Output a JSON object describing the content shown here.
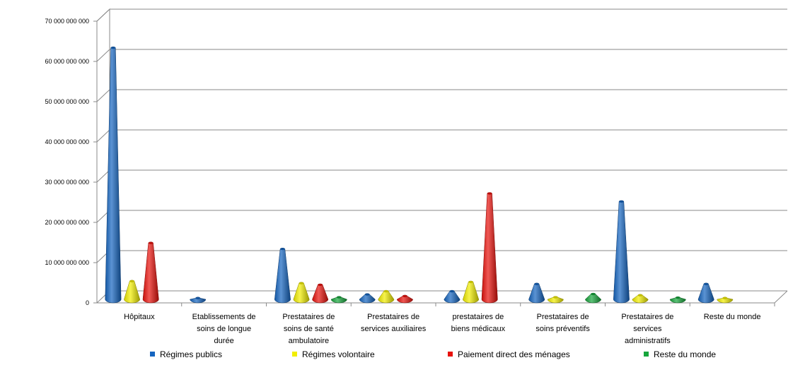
{
  "chart_data": {
    "type": "bar",
    "style": "3d-cone",
    "categories": [
      [
        "Hôpitaux"
      ],
      [
        "Etablissements de",
        "soins de longue",
        "durée"
      ],
      [
        "Prestataires de",
        "soins de santé",
        "ambulatoire"
      ],
      [
        "Prestataires de",
        "services auxiliaires"
      ],
      [
        "prestataires de",
        "biens médicaux"
      ],
      [
        "Prestataires de",
        "soins préventifs"
      ],
      [
        "Prestataires de",
        "services",
        "administratifs"
      ],
      [
        "Reste du monde"
      ]
    ],
    "series": [
      {
        "name": "Régimes publics",
        "color": "#1565c0",
        "values": [
          62500000000,
          300000000,
          12500000000,
          1200000000,
          2000000000,
          3800000000,
          24300000000,
          3800000000
        ]
      },
      {
        "name": "Régimes volontaire",
        "color": "#f2ee00",
        "values": [
          4500000000,
          null,
          4000000000,
          2000000000,
          4300000000,
          500000000,
          1000000000,
          300000000
        ]
      },
      {
        "name": "Paiement direct des ménages",
        "color": "#e8120c",
        "values": [
          14000000000,
          null,
          3600000000,
          800000000,
          26300000000,
          null,
          null,
          null
        ]
      },
      {
        "name": "Reste du monde",
        "color": "#17a63c",
        "values": [
          null,
          null,
          500000000,
          null,
          null,
          1300000000,
          400000000,
          null
        ]
      }
    ],
    "yticks": [
      "0",
      "10 000 000 000",
      "20 000 000 000",
      "30 000 000 000",
      "40 000 000 000",
      "50 000 000 000",
      "60 000 000 000",
      "70 000 000 000"
    ],
    "ylim": [
      0,
      70000000000
    ],
    "grid": true,
    "legend_position": "bottom"
  }
}
